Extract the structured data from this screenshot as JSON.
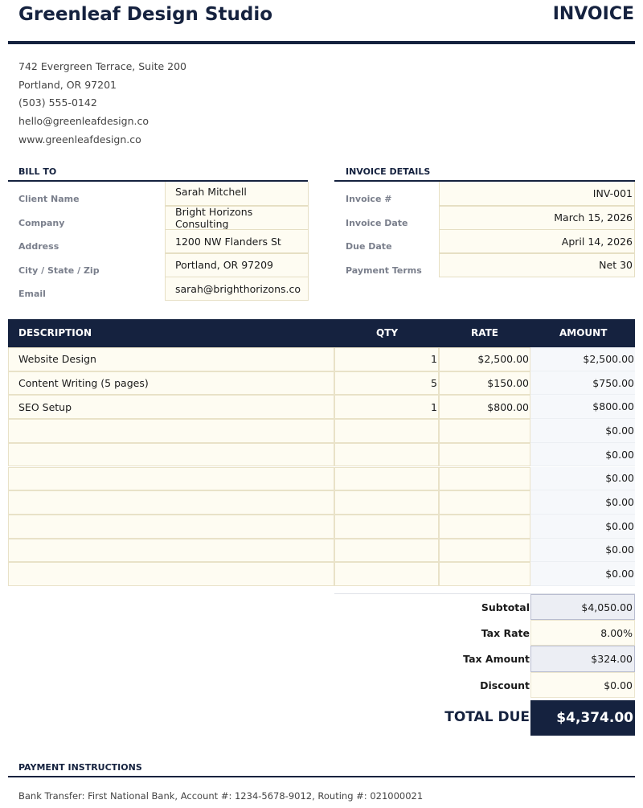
{
  "header": {
    "company": "Greenleaf Design Studio",
    "title": "INVOICE"
  },
  "company_info": [
    "742 Evergreen Terrace, Suite 200",
    "Portland, OR 97201",
    "(503) 555-0142",
    "hello@greenleafdesign.co",
    "www.greenleafdesign.co"
  ],
  "bill_to": {
    "heading": "BILL TO",
    "fields": [
      {
        "label": "Client Name",
        "value": "Sarah Mitchell"
      },
      {
        "label": "Company",
        "value": "Bright Horizons Consulting"
      },
      {
        "label": "Address",
        "value": "1200 NW Flanders St"
      },
      {
        "label": "City / State / Zip",
        "value": "Portland, OR 97209"
      },
      {
        "label": "Email",
        "value": "sarah@brighthorizons.co"
      }
    ]
  },
  "invoice_details": {
    "heading": "INVOICE DETAILS",
    "fields": [
      {
        "label": "Invoice #",
        "value": "INV-001"
      },
      {
        "label": "Invoice Date",
        "value": "March 15, 2026"
      },
      {
        "label": "Due Date",
        "value": "April 14, 2026"
      },
      {
        "label": "Payment Terms",
        "value": "Net 30"
      }
    ]
  },
  "table": {
    "headers": [
      "DESCRIPTION",
      "QTY",
      "RATE",
      "AMOUNT"
    ],
    "rows": [
      [
        "Website Design",
        "1",
        "$2,500.00",
        "$2,500.00"
      ],
      [
        "Content Writing (5 pages)",
        "5",
        "$150.00",
        "$750.00"
      ],
      [
        "SEO Setup",
        "1",
        "$800.00",
        "$800.00"
      ],
      [
        "",
        "",
        "",
        "$0.00"
      ],
      [
        "",
        "",
        "",
        "$0.00"
      ],
      [
        "",
        "",
        "",
        "$0.00"
      ],
      [
        "",
        "",
        "",
        "$0.00"
      ],
      [
        "",
        "",
        "",
        "$0.00"
      ],
      [
        "",
        "",
        "",
        "$0.00"
      ],
      [
        "",
        "",
        "",
        "$0.00"
      ]
    ]
  },
  "totals": {
    "subtotal_label": "Subtotal",
    "subtotal": "$4,050.00",
    "tax_rate_label": "Tax Rate",
    "tax_rate": "8.00%",
    "tax_amount_label": "Tax Amount",
    "tax_amount": "$324.00",
    "discount_label": "Discount",
    "discount": "$0.00",
    "total_label": "TOTAL DUE",
    "total": "$4,374.00"
  },
  "payment": {
    "heading": "PAYMENT INSTRUCTIONS",
    "text": "Bank Transfer: First National Bank, Account #: 1234-5678-9012, Routing #: 021000021"
  },
  "colors": {
    "navy": "#15223f",
    "cream": "#fefcf2"
  }
}
